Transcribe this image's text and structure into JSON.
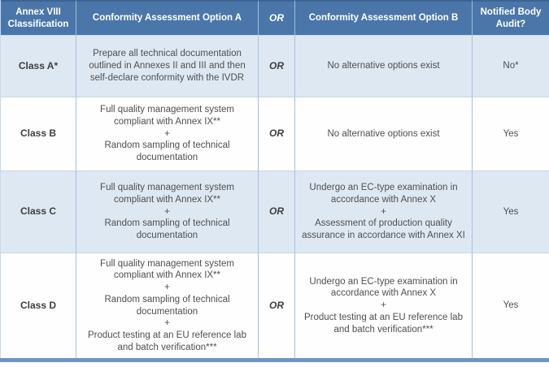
{
  "colors": {
    "header_bg": "#4a76aa",
    "header_text": "#ffffff",
    "row_alt_bg": "#dee8f3",
    "row_plain_bg": "#fefefe",
    "body_text": "#4f4f4f",
    "emphasis_text": "#3e3e3e",
    "vertical_border": "#a8c0dc",
    "horizontal_border": "#c7d6e9",
    "top_border": "#3d6392",
    "bottom_bar": "#6e95c2"
  },
  "table": {
    "headers": [
      "Annex VIII Classification",
      "Conformity Assessment Option A",
      "OR",
      "Conformity Assessment Option B",
      "Notified Body Audit?"
    ],
    "rows": [
      {
        "classification": "Class A*",
        "option_a": "Prepare all technical documentation outlined in Annexes II and III and then self-declare conformity with the IVDR",
        "or_label": "OR",
        "option_b": "No alternative options exist",
        "notified_body_audit": "No*"
      },
      {
        "classification": "Class B",
        "option_a": "Full quality management system compliant with Annex IX**\n+\nRandom sampling of technical documentation",
        "or_label": "OR",
        "option_b": "No alternative options exist",
        "notified_body_audit": "Yes"
      },
      {
        "classification": "Class C",
        "option_a": "Full quality management system compliant with Annex IX**\n+\nRandom sampling of technical documentation",
        "or_label": "OR",
        "option_b": "Undergo an EC-type examination in accordance with Annex X\n+\nAssessment of production quality assurance in accordance with Annex XI",
        "notified_body_audit": "Yes"
      },
      {
        "classification": "Class D",
        "option_a": "Full quality management system compliant with Annex IX**\n+\nRandom sampling of technical documentation\n+\nProduct testing at an EU reference lab and batch verification***",
        "or_label": "OR",
        "option_b": "Undergo an EC-type examination in accordance with Annex X\n+\nProduct testing at an EU reference lab and batch verification***",
        "notified_body_audit": "Yes"
      }
    ]
  }
}
